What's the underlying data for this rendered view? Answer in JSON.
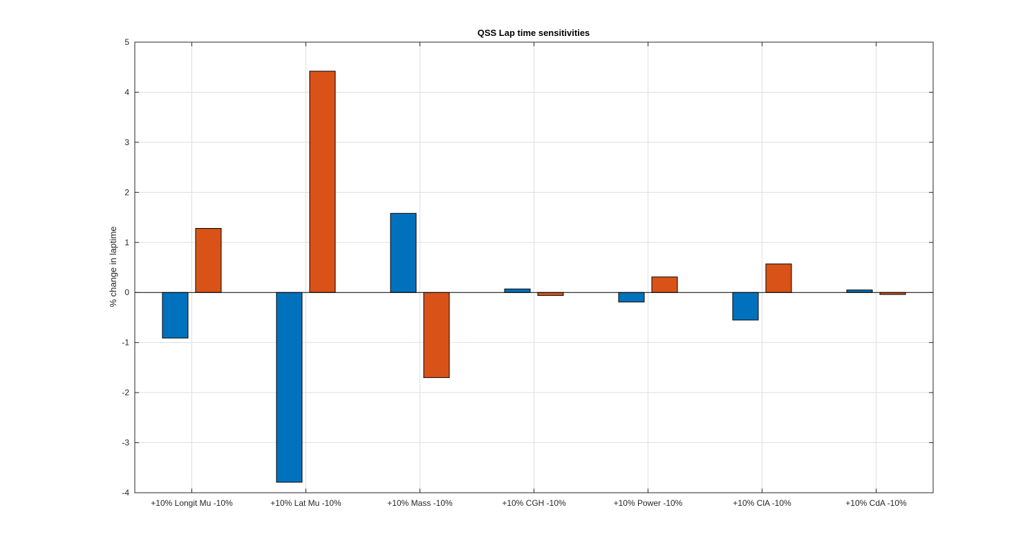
{
  "chart_data": {
    "type": "bar",
    "title": "QSS Lap time sensitivities",
    "xlabel": "",
    "ylabel": "% change in laptime",
    "ylim": [
      -4,
      5
    ],
    "yticks": [
      "5",
      "4",
      "3",
      "2",
      "1",
      "0",
      "-1",
      "-2",
      "-3",
      "-4"
    ],
    "grid": true,
    "legend": "none",
    "categories": [
      "+10% Longit Mu -10%",
      "+10% Lat Mu -10%",
      "+10% Mass -10%",
      "+10% CGH -10%",
      "+10% Power -10%",
      "+10% ClA -10%",
      "+10% CdA -10%"
    ],
    "series": [
      {
        "color": "#0072BD",
        "values": [
          -0.91,
          -3.79,
          1.58,
          0.07,
          -0.19,
          -0.55,
          0.05
        ]
      },
      {
        "color": "#D95319",
        "values": [
          1.28,
          4.42,
          -1.7,
          -0.06,
          0.31,
          0.57,
          -0.04
        ]
      }
    ]
  }
}
